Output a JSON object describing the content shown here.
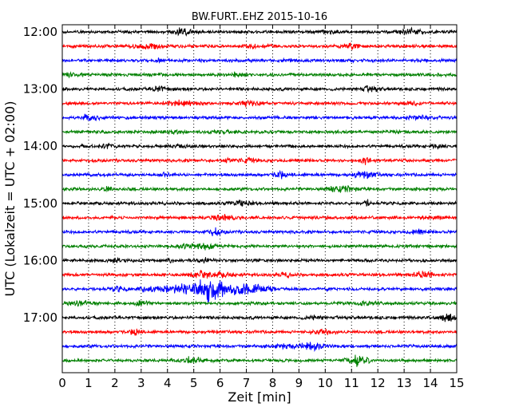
{
  "chart_data": {
    "type": "line",
    "title": "BW.FURT..EHZ 2015-10-16",
    "xlabel": "Zeit  [min]",
    "ylabel": "UTC (Lokalzeit = UTC + 02:00)",
    "xlim": [
      0,
      15
    ],
    "x_ticks": [
      "0",
      "1",
      "2",
      "3",
      "4",
      "5",
      "6",
      "7",
      "8",
      "9",
      "10",
      "11",
      "12",
      "13",
      "14",
      "15"
    ],
    "y_ticks": [
      "12:00",
      "13:00",
      "14:00",
      "15:00",
      "16:00",
      "17:00"
    ],
    "trace_interval_min": 15,
    "first_trace": "12:00",
    "trace_count": 24,
    "series_colors": [
      "#000000",
      "#ff0000",
      "#0000ff",
      "#008000"
    ],
    "grid": "vertical-dotted",
    "events": [
      {
        "trace": "16:30",
        "center_min": 5.6,
        "peak_amplitude": 1.0
      }
    ]
  }
}
